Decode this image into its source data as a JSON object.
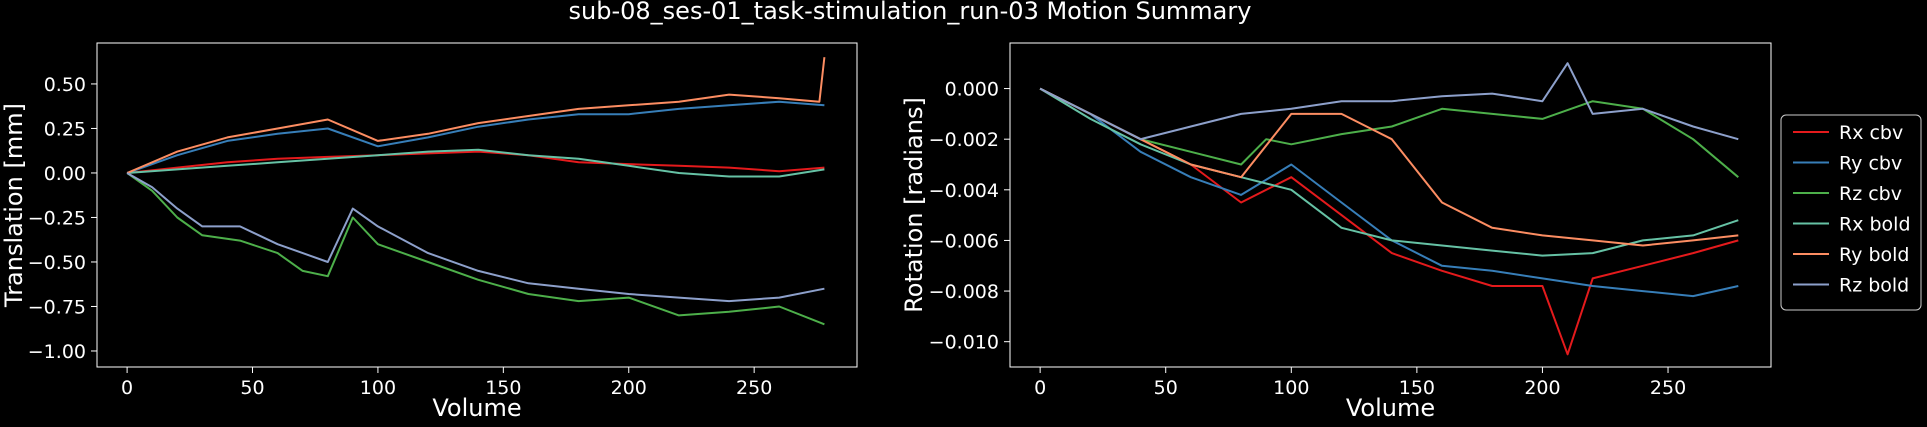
{
  "figure": {
    "title": "sub-08_ses-01_task-stimulation_run-03 Motion Summary",
    "background": "#000000",
    "foreground": "#ffffff"
  },
  "legend": {
    "placement": "right",
    "entries": [
      {
        "label": "Rx cbv",
        "color": "#e41a1c"
      },
      {
        "label": "Ry cbv",
        "color": "#377eb8"
      },
      {
        "label": "Rz cbv",
        "color": "#4daf4a"
      },
      {
        "label": "Rx bold",
        "color": "#66c2a5"
      },
      {
        "label": "Ry bold",
        "color": "#fc8d62"
      },
      {
        "label": "Rz bold",
        "color": "#8da0cb"
      }
    ]
  },
  "chart_data": [
    {
      "type": "line",
      "xlabel": "Volume",
      "ylabel": "Translation [mm]",
      "xlim": [
        -12,
        291
      ],
      "ylim": [
        -1.09,
        0.73
      ],
      "xticks": [
        0,
        50,
        100,
        150,
        200,
        250
      ],
      "xtick_labels": [
        "0",
        "50",
        "100",
        "150",
        "200",
        "250"
      ],
      "yticks": [
        0.5,
        0.25,
        0.0,
        -0.25,
        -0.5,
        -0.75,
        -1.0
      ],
      "ytick_labels": [
        "0.50",
        "0.25",
        "0.00",
        "−0.25",
        "−0.50",
        "−0.75",
        "−1.00"
      ],
      "grid": false,
      "series": [
        {
          "color": "#e41a1c",
          "x": [
            0,
            20,
            40,
            60,
            80,
            100,
            120,
            140,
            160,
            180,
            200,
            220,
            240,
            260,
            278
          ],
          "y": [
            0.0,
            0.03,
            0.06,
            0.08,
            0.09,
            0.1,
            0.11,
            0.12,
            0.1,
            0.06,
            0.05,
            0.04,
            0.03,
            0.01,
            0.03
          ]
        },
        {
          "color": "#377eb8",
          "x": [
            0,
            20,
            40,
            60,
            80,
            100,
            120,
            140,
            160,
            180,
            200,
            220,
            240,
            260,
            278
          ],
          "y": [
            0.0,
            0.1,
            0.18,
            0.22,
            0.25,
            0.15,
            0.2,
            0.26,
            0.3,
            0.33,
            0.33,
            0.36,
            0.38,
            0.4,
            0.38
          ]
        },
        {
          "color": "#4daf4a",
          "x": [
            0,
            10,
            20,
            30,
            45,
            60,
            70,
            80,
            90,
            100,
            120,
            140,
            160,
            180,
            200,
            220,
            240,
            260,
            278
          ],
          "y": [
            0.0,
            -0.1,
            -0.25,
            -0.35,
            -0.38,
            -0.45,
            -0.55,
            -0.58,
            -0.25,
            -0.4,
            -0.5,
            -0.6,
            -0.68,
            -0.72,
            -0.7,
            -0.8,
            -0.78,
            -0.75,
            -0.85
          ]
        },
        {
          "color": "#66c2a5",
          "x": [
            0,
            20,
            40,
            60,
            80,
            100,
            120,
            140,
            160,
            180,
            200,
            220,
            240,
            260,
            278
          ],
          "y": [
            0.0,
            0.02,
            0.04,
            0.06,
            0.08,
            0.1,
            0.12,
            0.13,
            0.1,
            0.08,
            0.04,
            0.0,
            -0.02,
            -0.02,
            0.02
          ]
        },
        {
          "color": "#fc8d62",
          "x": [
            0,
            20,
            40,
            60,
            80,
            100,
            120,
            140,
            160,
            180,
            200,
            220,
            240,
            260,
            276,
            278
          ],
          "y": [
            0.0,
            0.12,
            0.2,
            0.25,
            0.3,
            0.18,
            0.22,
            0.28,
            0.32,
            0.36,
            0.38,
            0.4,
            0.44,
            0.42,
            0.4,
            0.65
          ]
        },
        {
          "color": "#8da0cb",
          "x": [
            0,
            10,
            20,
            30,
            45,
            60,
            70,
            80,
            90,
            100,
            120,
            140,
            160,
            180,
            200,
            220,
            240,
            260,
            278
          ],
          "y": [
            0.0,
            -0.08,
            -0.2,
            -0.3,
            -0.3,
            -0.4,
            -0.45,
            -0.5,
            -0.2,
            -0.3,
            -0.45,
            -0.55,
            -0.62,
            -0.65,
            -0.68,
            -0.7,
            -0.72,
            -0.7,
            -0.65
          ]
        }
      ]
    },
    {
      "type": "line",
      "xlabel": "Volume",
      "ylabel": "Rotation [radians]",
      "xlim": [
        -12,
        291
      ],
      "ylim": [
        -0.011,
        0.0018
      ],
      "xticks": [
        0,
        50,
        100,
        150,
        200,
        250
      ],
      "xtick_labels": [
        "0",
        "50",
        "100",
        "150",
        "200",
        "250"
      ],
      "yticks": [
        0.0,
        -0.002,
        -0.004,
        -0.006,
        -0.008,
        -0.01
      ],
      "ytick_labels": [
        "0.000",
        "−0.002",
        "−0.004",
        "−0.006",
        "−0.008",
        "−0.010"
      ],
      "grid": false,
      "series": [
        {
          "color": "#e41a1c",
          "x": [
            0,
            20,
            40,
            60,
            80,
            100,
            120,
            140,
            160,
            180,
            200,
            210,
            220,
            240,
            260,
            278
          ],
          "y": [
            0.0,
            -0.001,
            -0.002,
            -0.003,
            -0.0045,
            -0.0035,
            -0.005,
            -0.0065,
            -0.0072,
            -0.0078,
            -0.0078,
            -0.0105,
            -0.0075,
            -0.007,
            -0.0065,
            -0.006
          ]
        },
        {
          "color": "#377eb8",
          "x": [
            0,
            20,
            40,
            60,
            80,
            100,
            120,
            140,
            160,
            180,
            200,
            220,
            240,
            260,
            278
          ],
          "y": [
            0.0,
            -0.001,
            -0.0025,
            -0.0035,
            -0.0042,
            -0.003,
            -0.0045,
            -0.006,
            -0.007,
            -0.0072,
            -0.0075,
            -0.0078,
            -0.008,
            -0.0082,
            -0.0078
          ]
        },
        {
          "color": "#4daf4a",
          "x": [
            0,
            20,
            40,
            60,
            80,
            90,
            100,
            120,
            140,
            160,
            180,
            200,
            220,
            240,
            260,
            278
          ],
          "y": [
            0.0,
            -0.001,
            -0.002,
            -0.0025,
            -0.003,
            -0.002,
            -0.0022,
            -0.0018,
            -0.0015,
            -0.0008,
            -0.001,
            -0.0012,
            -0.0005,
            -0.0008,
            -0.002,
            -0.0035
          ]
        },
        {
          "color": "#66c2a5",
          "x": [
            0,
            20,
            40,
            60,
            80,
            100,
            120,
            140,
            160,
            180,
            200,
            220,
            240,
            260,
            278
          ],
          "y": [
            0.0,
            -0.0012,
            -0.0022,
            -0.003,
            -0.0035,
            -0.004,
            -0.0055,
            -0.006,
            -0.0062,
            -0.0064,
            -0.0066,
            -0.0065,
            -0.006,
            -0.0058,
            -0.0052
          ]
        },
        {
          "color": "#fc8d62",
          "x": [
            0,
            20,
            40,
            60,
            80,
            100,
            120,
            140,
            160,
            180,
            200,
            220,
            240,
            260,
            278
          ],
          "y": [
            0.0,
            -0.001,
            -0.002,
            -0.003,
            -0.0035,
            -0.001,
            -0.001,
            -0.002,
            -0.0045,
            -0.0055,
            -0.0058,
            -0.006,
            -0.0062,
            -0.006,
            -0.0058
          ]
        },
        {
          "color": "#8da0cb",
          "x": [
            0,
            20,
            40,
            60,
            80,
            100,
            120,
            140,
            160,
            180,
            200,
            210,
            220,
            240,
            260,
            278
          ],
          "y": [
            0.0,
            -0.001,
            -0.002,
            -0.0015,
            -0.001,
            -0.0008,
            -0.0005,
            -0.0005,
            -0.0003,
            -0.0002,
            -0.0005,
            0.001,
            -0.001,
            -0.0008,
            -0.0015,
            -0.002
          ]
        }
      ]
    }
  ]
}
